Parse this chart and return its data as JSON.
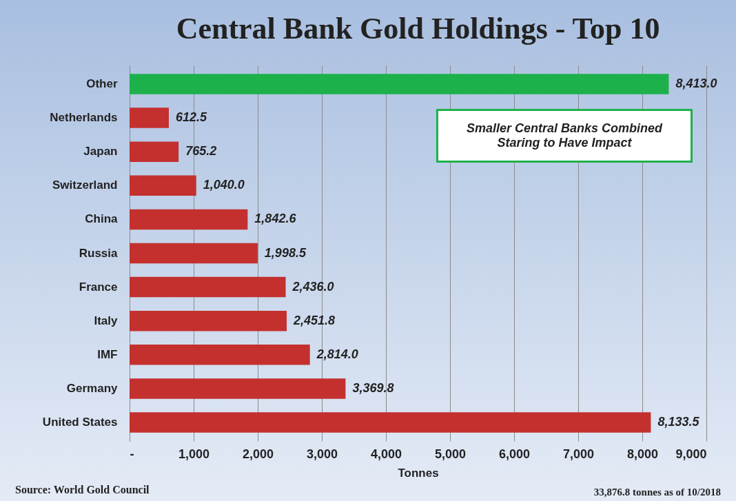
{
  "chart_data": {
    "type": "bar",
    "orientation": "horizontal",
    "title": "Central Bank Gold Holdings - Top 10",
    "xlabel": "Tonnes",
    "categories": [
      "Other",
      "Netherlands",
      "Japan",
      "Switzerland",
      "China",
      "Russia",
      "France",
      "Italy",
      "IMF",
      "Germany",
      "United States"
    ],
    "values": [
      8413.0,
      612.5,
      765.2,
      1040.0,
      1842.6,
      1998.5,
      2436.0,
      2451.8,
      2814.0,
      3369.8,
      8133.5
    ],
    "value_labels": [
      "8,413.0",
      "612.5",
      "765.2",
      "1,040.0",
      "1,842.6",
      "1,998.5",
      "2,436.0",
      "2,451.8",
      "2,814.0",
      "3,369.8",
      "8,133.5"
    ],
    "colors": [
      "#1db14b",
      "#c3302e",
      "#c3302e",
      "#c3302e",
      "#c3302e",
      "#c3302e",
      "#c3302e",
      "#c3302e",
      "#c3302e",
      "#c3302e",
      "#c3302e"
    ],
    "xlim": [
      0,
      9000
    ],
    "xticks": [
      {
        "value": 0,
        "label": "-"
      },
      {
        "value": 1000,
        "label": "1,000"
      },
      {
        "value": 2000,
        "label": "2,000"
      },
      {
        "value": 3000,
        "label": "3,000"
      },
      {
        "value": 4000,
        "label": "4,000"
      },
      {
        "value": 5000,
        "label": "5,000"
      },
      {
        "value": 6000,
        "label": "6,000"
      },
      {
        "value": 7000,
        "label": "7,000"
      },
      {
        "value": 8000,
        "label": "8,000"
      },
      {
        "value": 9000,
        "label": "9,000"
      }
    ],
    "grid": "x",
    "annotations": [
      "Smaller Central Banks Combined Staring to Have Impact",
      "Source: World Gold Council",
      "33,876.8 tonnes as of 10/2018"
    ]
  }
}
